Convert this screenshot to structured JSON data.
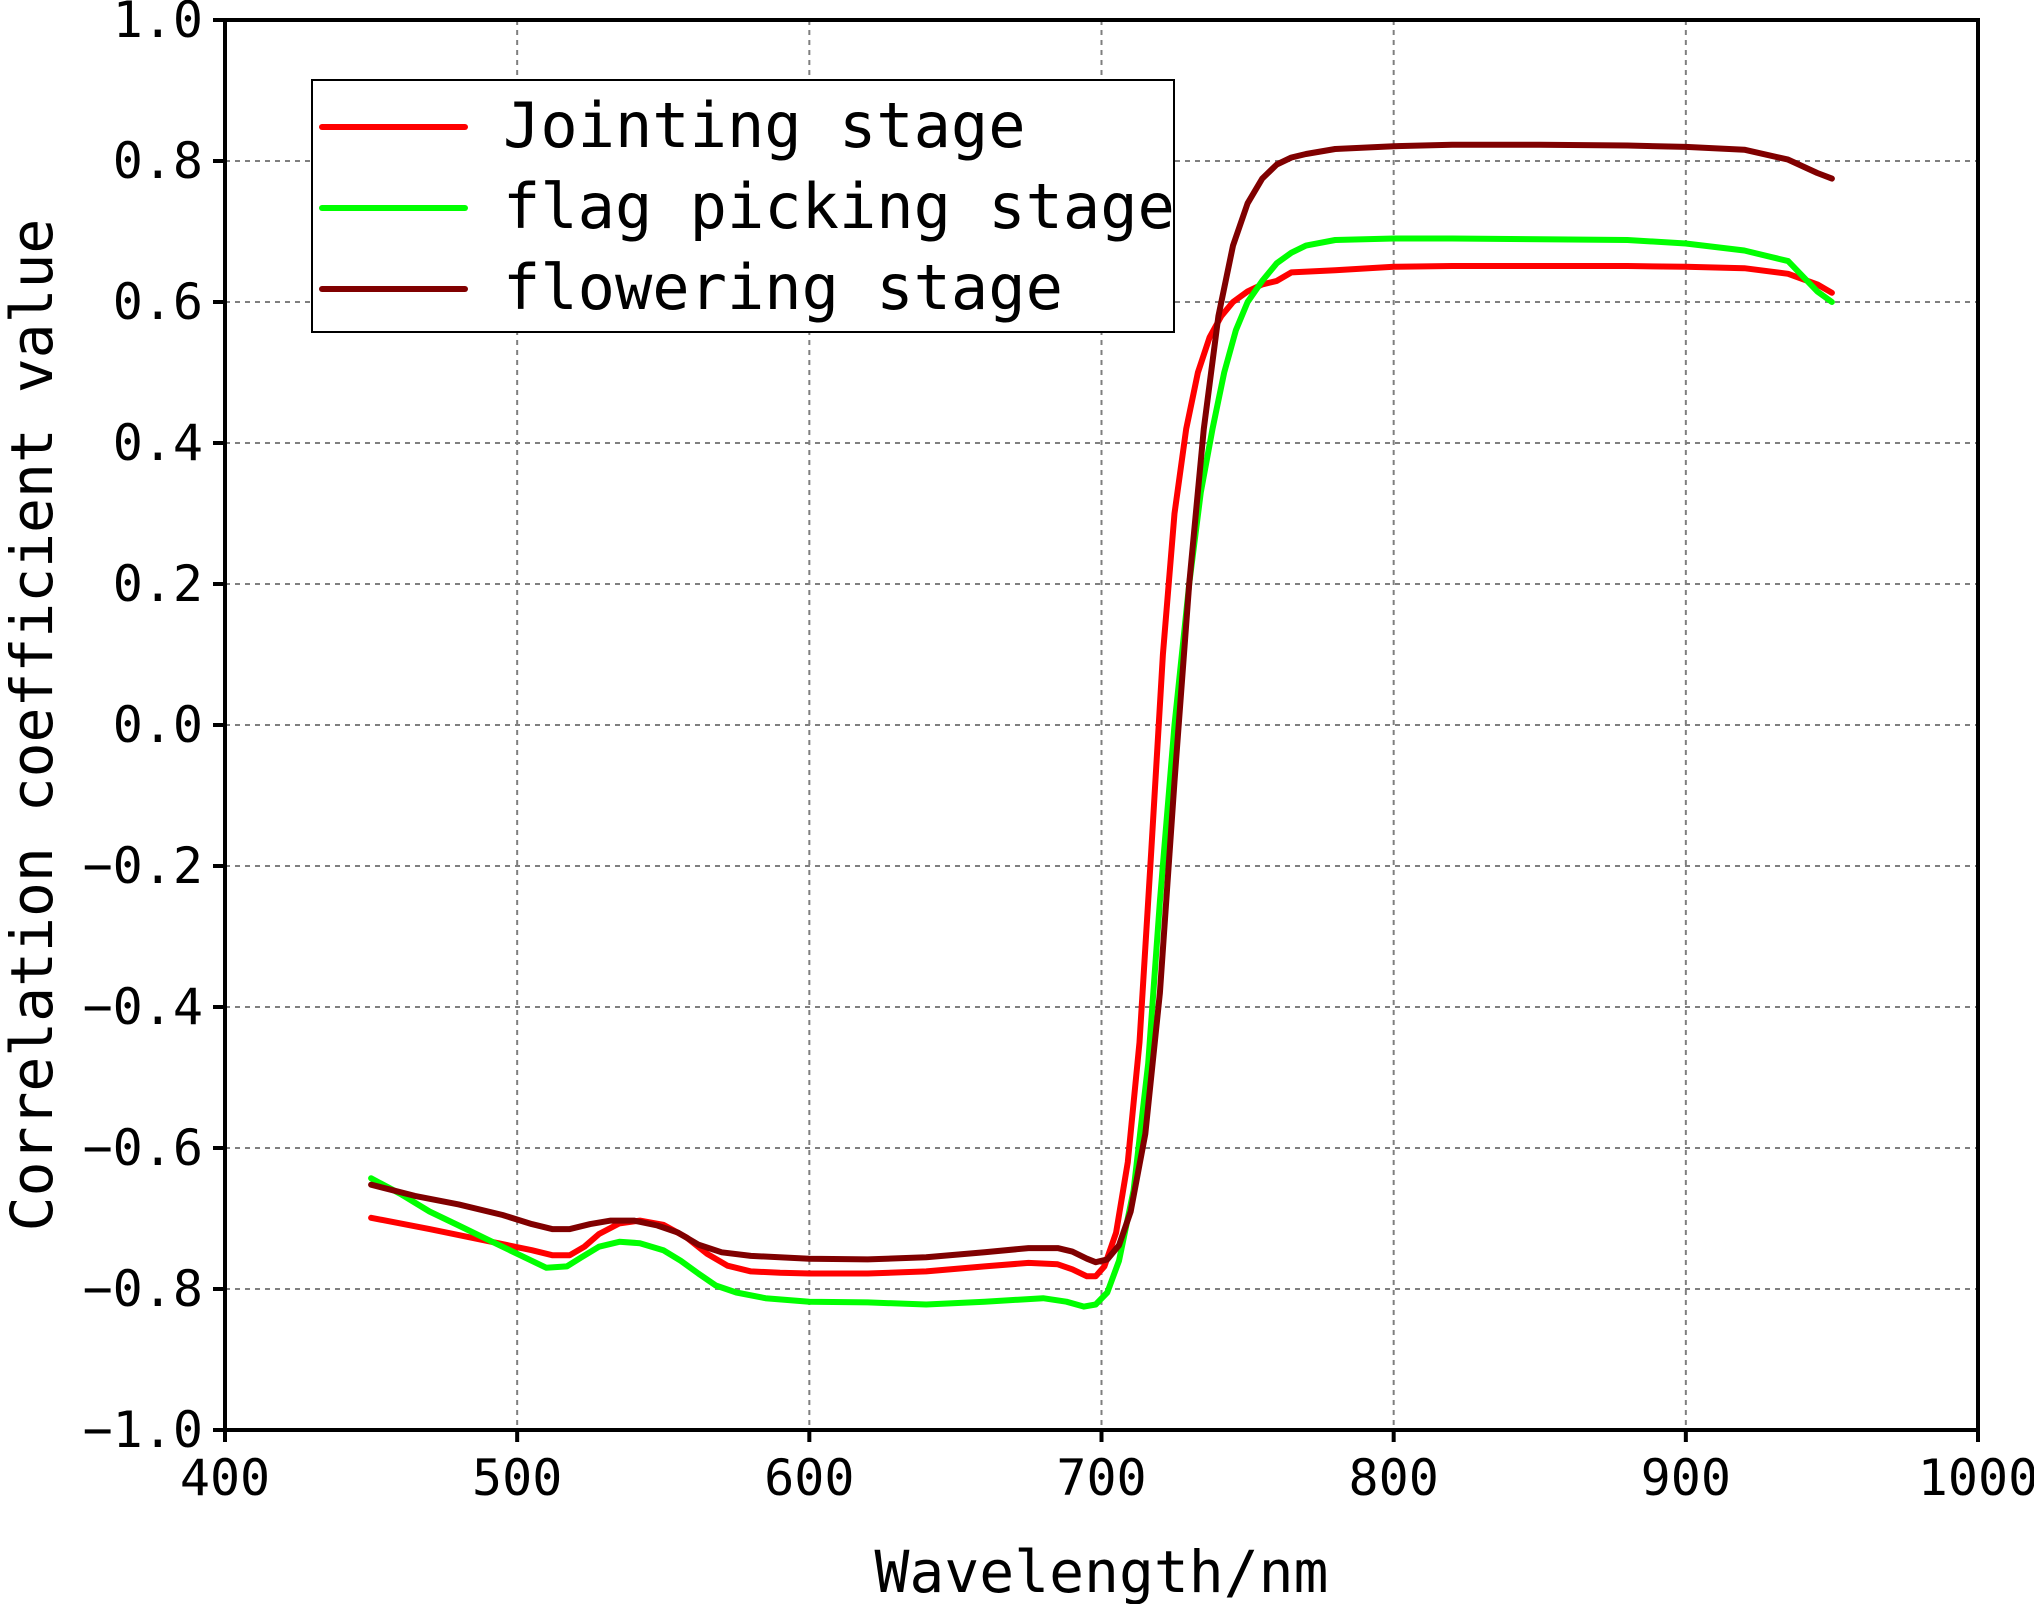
{
  "chart_data": {
    "type": "line",
    "title": "",
    "xlabel": "Wavelength/nm",
    "ylabel": "Correlation coefficient value",
    "xlim": [
      400,
      1000
    ],
    "ylim": [
      -1.0,
      1.0
    ],
    "x_ticks": [
      400,
      500,
      600,
      700,
      800,
      900,
      1000
    ],
    "y_ticks": [
      -1.0,
      -0.8,
      -0.6,
      -0.4,
      -0.2,
      0.0,
      0.2,
      0.4,
      0.6,
      0.8,
      1.0
    ],
    "x_tick_labels": [
      "400",
      "500",
      "600",
      "700",
      "800",
      "900",
      "1000"
    ],
    "y_tick_labels": [
      "−1.0",
      "−0.8",
      "−0.6",
      "−0.4",
      "−0.2",
      "0.0",
      "0.2",
      "0.4",
      "0.6",
      "0.8",
      "1.0"
    ],
    "grid": true,
    "legend_position": "top-left",
    "series": [
      {
        "name": "Jointing stage",
        "color": "#ff0000",
        "x": [
          450,
          470,
          490,
          505,
          512,
          518,
          523,
          528,
          535,
          542,
          550,
          558,
          565,
          572,
          580,
          590,
          600,
          620,
          640,
          660,
          675,
          685,
          690,
          695,
          698,
          701,
          705,
          709,
          713,
          717,
          721,
          725,
          729,
          733,
          737,
          741,
          745,
          750,
          755,
          760,
          765,
          780,
          800,
          820,
          850,
          880,
          900,
          920,
          935,
          945,
          950
        ],
        "y": [
          -0.699,
          -0.715,
          -0.732,
          -0.745,
          -0.752,
          -0.752,
          -0.74,
          -0.722,
          -0.707,
          -0.703,
          -0.709,
          -0.727,
          -0.75,
          -0.767,
          -0.775,
          -0.777,
          -0.778,
          -0.778,
          -0.775,
          -0.768,
          -0.763,
          -0.765,
          -0.772,
          -0.782,
          -0.782,
          -0.768,
          -0.72,
          -0.62,
          -0.45,
          -0.18,
          0.1,
          0.3,
          0.42,
          0.5,
          0.55,
          0.58,
          0.6,
          0.615,
          0.625,
          0.63,
          0.642,
          0.645,
          0.65,
          0.651,
          0.651,
          0.651,
          0.65,
          0.648,
          0.64,
          0.625,
          0.613
        ]
      },
      {
        "name": "flag picking stage",
        "color": "#00ff00",
        "x": [
          450,
          460,
          470,
          480,
          490,
          500,
          510,
          517,
          522,
          528,
          535,
          542,
          550,
          556,
          562,
          568,
          575,
          585,
          600,
          620,
          640,
          660,
          680,
          688,
          694,
          698,
          702,
          706,
          711,
          716,
          720,
          725,
          730,
          734,
          738,
          742,
          746,
          750,
          755,
          760,
          765,
          770,
          780,
          800,
          820,
          850,
          880,
          900,
          920,
          935,
          945,
          950
        ],
        "y": [
          -0.643,
          -0.665,
          -0.69,
          -0.71,
          -0.73,
          -0.75,
          -0.77,
          -0.768,
          -0.755,
          -0.74,
          -0.733,
          -0.735,
          -0.745,
          -0.76,
          -0.778,
          -0.795,
          -0.805,
          -0.813,
          -0.818,
          -0.819,
          -0.822,
          -0.818,
          -0.813,
          -0.818,
          -0.825,
          -0.822,
          -0.805,
          -0.76,
          -0.66,
          -0.48,
          -0.25,
          0.0,
          0.2,
          0.33,
          0.42,
          0.5,
          0.56,
          0.6,
          0.63,
          0.655,
          0.67,
          0.68,
          0.688,
          0.69,
          0.69,
          0.689,
          0.688,
          0.683,
          0.673,
          0.658,
          0.615,
          0.6
        ]
      },
      {
        "name": "flowering stage",
        "color": "#800000",
        "x": [
          450,
          465,
          480,
          495,
          505,
          512,
          518,
          525,
          532,
          540,
          548,
          555,
          562,
          570,
          580,
          600,
          620,
          640,
          660,
          675,
          685,
          690,
          695,
          698,
          702,
          706,
          710,
          715,
          720,
          725,
          730,
          735,
          740,
          745,
          750,
          755,
          760,
          765,
          770,
          780,
          800,
          820,
          850,
          880,
          900,
          920,
          935,
          945,
          950
        ],
        "y": [
          -0.652,
          -0.668,
          -0.68,
          -0.695,
          -0.708,
          -0.715,
          -0.715,
          -0.708,
          -0.703,
          -0.703,
          -0.71,
          -0.72,
          -0.737,
          -0.748,
          -0.753,
          -0.757,
          -0.758,
          -0.755,
          -0.748,
          -0.742,
          -0.742,
          -0.747,
          -0.757,
          -0.762,
          -0.758,
          -0.738,
          -0.69,
          -0.58,
          -0.38,
          -0.08,
          0.2,
          0.42,
          0.58,
          0.68,
          0.74,
          0.775,
          0.795,
          0.805,
          0.81,
          0.817,
          0.821,
          0.823,
          0.823,
          0.822,
          0.82,
          0.816,
          0.802,
          0.783,
          0.775
        ]
      }
    ]
  }
}
